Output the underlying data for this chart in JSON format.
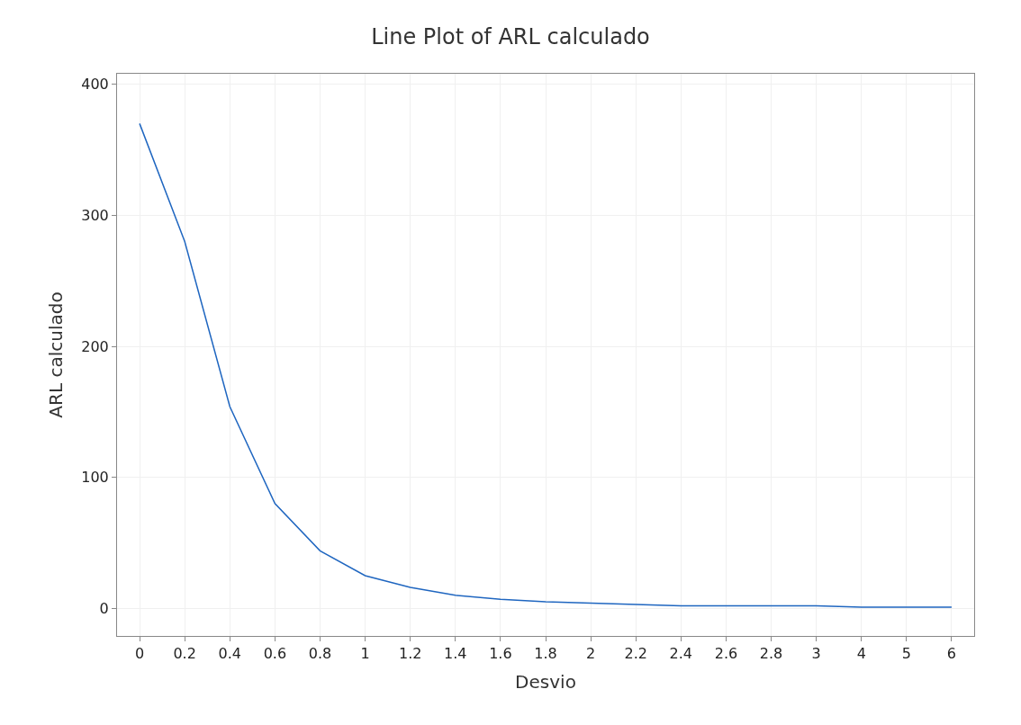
{
  "chart_data": {
    "type": "line",
    "title": "Line Plot of ARL calculado",
    "xlabel": "Desvio",
    "ylabel": "ARL calculado",
    "categories": [
      "0",
      "0.2",
      "0.4",
      "0.6",
      "0.8",
      "1",
      "1.2",
      "1.4",
      "1.6",
      "1.8",
      "2",
      "2.2",
      "2.4",
      "2.6",
      "2.8",
      "3",
      "4",
      "5",
      "6"
    ],
    "series": [
      {
        "color": "#1f66c0",
        "values": [
          370,
          280,
          154,
          80,
          44,
          25,
          16,
          10,
          7,
          5,
          4,
          3,
          2,
          2,
          2,
          2,
          1,
          1,
          1
        ]
      }
    ],
    "ylim": [
      -21,
      408
    ],
    "yticks": [
      0,
      100,
      200,
      300,
      400
    ],
    "grid": true,
    "marker": "none",
    "line_style": "solid",
    "legend": false
  }
}
